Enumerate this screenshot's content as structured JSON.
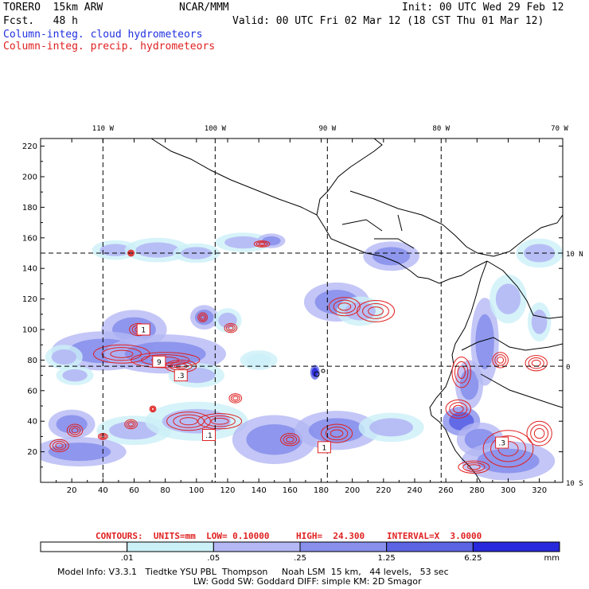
{
  "header": {
    "model": "TORERO  15km ARW",
    "forecast": "Fcst.   48 h",
    "center": "NCAR/MMM",
    "init": "Init: 00 UTC Wed 29 Feb 12",
    "valid": "Valid: 00 UTC Fri 02 Mar 12 (18 CST Thu 01 Mar 12)",
    "field_cloud": "Column-integ. cloud hydrometeors",
    "field_precip": "Column-integ. precip. hydrometeors"
  },
  "colors": {
    "cloud": "#2030e0",
    "precip": "#e02020"
  },
  "chart_data": {
    "type": "heatmap",
    "title": "Column-integrated cloud and precipitation hydrometeors",
    "x_ticks": [
      "20",
      "40",
      "60",
      "80",
      "100",
      "120",
      "140",
      "160",
      "180",
      "200",
      "220",
      "240",
      "260",
      "280",
      "300",
      "320"
    ],
    "y_ticks": [
      "20",
      "40",
      "60",
      "80",
      "100",
      "120",
      "140",
      "160",
      "180",
      "200",
      "220"
    ],
    "xlim": [
      0,
      335
    ],
    "ylim": [
      0,
      225
    ],
    "lon_labels": [
      "110 W",
      "100 W",
      "90 W",
      "80 W",
      "70 W"
    ],
    "lon_grid_x": [
      40,
      112,
      184,
      257
    ],
    "lat_labels": [
      "10 N",
      "0",
      "10 S"
    ],
    "lat_grid_y": [
      150,
      76
    ],
    "contour_box_labels": [
      {
        "text": "1",
        "x": 66,
        "y": 100
      },
      {
        "text": "9",
        "x": 76,
        "y": 79
      },
      {
        "text": ".3",
        "x": 90,
        "y": 70
      },
      {
        "text": ".1",
        "x": 108,
        "y": 31
      },
      {
        "text": "1",
        "x": 182,
        "y": 23
      },
      {
        "text": ".3",
        "x": 296,
        "y": 26
      }
    ],
    "cloud_regions": [
      {
        "x": 48,
        "y": 152,
        "rx": 10,
        "ry": 4,
        "level": 2
      },
      {
        "x": 75,
        "y": 152,
        "rx": 14,
        "ry": 5,
        "level": 2
      },
      {
        "x": 100,
        "y": 150,
        "rx": 10,
        "ry": 4,
        "level": 2
      },
      {
        "x": 130,
        "y": 157,
        "rx": 12,
        "ry": 4,
        "level": 2
      },
      {
        "x": 148,
        "y": 158,
        "rx": 6,
        "ry": 3,
        "level": 3
      },
      {
        "x": 225,
        "y": 148,
        "rx": 12,
        "ry": 6,
        "level": 3
      },
      {
        "x": 190,
        "y": 118,
        "rx": 14,
        "ry": 8,
        "level": 3
      },
      {
        "x": 205,
        "y": 112,
        "rx": 10,
        "ry": 6,
        "level": 2
      },
      {
        "x": 105,
        "y": 108,
        "rx": 6,
        "ry": 5,
        "level": 3
      },
      {
        "x": 120,
        "y": 106,
        "rx": 6,
        "ry": 5,
        "level": 2
      },
      {
        "x": 60,
        "y": 100,
        "rx": 14,
        "ry": 8,
        "level": 3
      },
      {
        "x": 40,
        "y": 86,
        "rx": 22,
        "ry": 8,
        "level": 3
      },
      {
        "x": 80,
        "y": 84,
        "rx": 26,
        "ry": 8,
        "level": 3
      },
      {
        "x": 15,
        "y": 82,
        "rx": 8,
        "ry": 5,
        "level": 2
      },
      {
        "x": 22,
        "y": 70,
        "rx": 8,
        "ry": 4,
        "level": 2
      },
      {
        "x": 100,
        "y": 70,
        "rx": 12,
        "ry": 5,
        "level": 2
      },
      {
        "x": 140,
        "y": 80,
        "rx": 8,
        "ry": 4,
        "level": 1
      },
      {
        "x": 20,
        "y": 38,
        "rx": 10,
        "ry": 6,
        "level": 3
      },
      {
        "x": 60,
        "y": 34,
        "rx": 16,
        "ry": 6,
        "level": 2
      },
      {
        "x": 100,
        "y": 40,
        "rx": 22,
        "ry": 8,
        "level": 2
      },
      {
        "x": 150,
        "y": 28,
        "rx": 18,
        "ry": 10,
        "level": 3
      },
      {
        "x": 190,
        "y": 34,
        "rx": 18,
        "ry": 8,
        "level": 3
      },
      {
        "x": 225,
        "y": 36,
        "rx": 14,
        "ry": 6,
        "level": 2
      },
      {
        "x": 25,
        "y": 20,
        "rx": 20,
        "ry": 6,
        "level": 3
      },
      {
        "x": 270,
        "y": 40,
        "rx": 8,
        "ry": 6,
        "level": 4
      },
      {
        "x": 282,
        "y": 28,
        "rx": 10,
        "ry": 7,
        "level": 3
      },
      {
        "x": 300,
        "y": 14,
        "rx": 20,
        "ry": 8,
        "level": 3
      },
      {
        "x": 275,
        "y": 64,
        "rx": 6,
        "ry": 10,
        "level": 3
      },
      {
        "x": 285,
        "y": 92,
        "rx": 6,
        "ry": 18,
        "level": 3
      },
      {
        "x": 300,
        "y": 120,
        "rx": 8,
        "ry": 10,
        "level": 2
      },
      {
        "x": 320,
        "y": 105,
        "rx": 5,
        "ry": 8,
        "level": 2
      },
      {
        "x": 320,
        "y": 150,
        "rx": 10,
        "ry": 6,
        "level": 2
      },
      {
        "x": 176,
        "y": 72,
        "rx": 2,
        "ry": 3,
        "level": 5
      }
    ],
    "precip_regions": [
      {
        "x": 52,
        "y": 84,
        "rx": 18,
        "ry": 6
      },
      {
        "x": 80,
        "y": 80,
        "rx": 22,
        "ry": 5
      },
      {
        "x": 90,
        "y": 76,
        "rx": 10,
        "ry": 4
      },
      {
        "x": 63,
        "y": 100,
        "rx": 6,
        "ry": 4
      },
      {
        "x": 104,
        "y": 108,
        "rx": 3,
        "ry": 3
      },
      {
        "x": 122,
        "y": 101,
        "rx": 4,
        "ry": 3
      },
      {
        "x": 58,
        "y": 150,
        "rx": 2,
        "ry": 2
      },
      {
        "x": 142,
        "y": 156,
        "rx": 5,
        "ry": 2
      },
      {
        "x": 195,
        "y": 115,
        "rx": 10,
        "ry": 6
      },
      {
        "x": 215,
        "y": 112,
        "rx": 12,
        "ry": 7
      },
      {
        "x": 95,
        "y": 40,
        "rx": 14,
        "ry": 6
      },
      {
        "x": 115,
        "y": 40,
        "rx": 14,
        "ry": 5
      },
      {
        "x": 58,
        "y": 38,
        "rx": 4,
        "ry": 3
      },
      {
        "x": 72,
        "y": 48,
        "rx": 2,
        "ry": 2
      },
      {
        "x": 22,
        "y": 34,
        "rx": 5,
        "ry": 4
      },
      {
        "x": 12,
        "y": 24,
        "rx": 6,
        "ry": 4
      },
      {
        "x": 40,
        "y": 30,
        "rx": 3,
        "ry": 2
      },
      {
        "x": 160,
        "y": 28,
        "rx": 6,
        "ry": 4
      },
      {
        "x": 190,
        "y": 32,
        "rx": 10,
        "ry": 6
      },
      {
        "x": 125,
        "y": 55,
        "rx": 4,
        "ry": 3
      },
      {
        "x": 270,
        "y": 72,
        "rx": 6,
        "ry": 10
      },
      {
        "x": 268,
        "y": 48,
        "rx": 8,
        "ry": 6
      },
      {
        "x": 295,
        "y": 80,
        "rx": 5,
        "ry": 5
      },
      {
        "x": 318,
        "y": 78,
        "rx": 7,
        "ry": 5
      },
      {
        "x": 300,
        "y": 22,
        "rx": 16,
        "ry": 12
      },
      {
        "x": 320,
        "y": 32,
        "rx": 8,
        "ry": 8
      },
      {
        "x": 278,
        "y": 10,
        "rx": 10,
        "ry": 4
      }
    ],
    "legend_contours": {
      "units_label": "CONTOURS:  UNITS=mm  LOW= 0.10000",
      "high_label": "HIGH=  24.300",
      "interval_label": "INTERVAL=X  3.0000"
    },
    "colorbar": {
      "levels": [
        ".01",
        ".05",
        ".25",
        "1.25",
        "6.25"
      ],
      "units": "mm",
      "colors": [
        "#ffffff",
        "#ccf0f8",
        "#b4b8f4",
        "#8890ec",
        "#5c64e4",
        "#2828dc"
      ]
    }
  },
  "footer": {
    "line1": "Model Info: V3.3.1   Tiedtke YSU PBL  Thompson     Noah LSM  15 km,   44 levels,   53 sec",
    "line2": "LW: Godd SW: Goddard DIFF: simple KM: 2D Smagor"
  }
}
